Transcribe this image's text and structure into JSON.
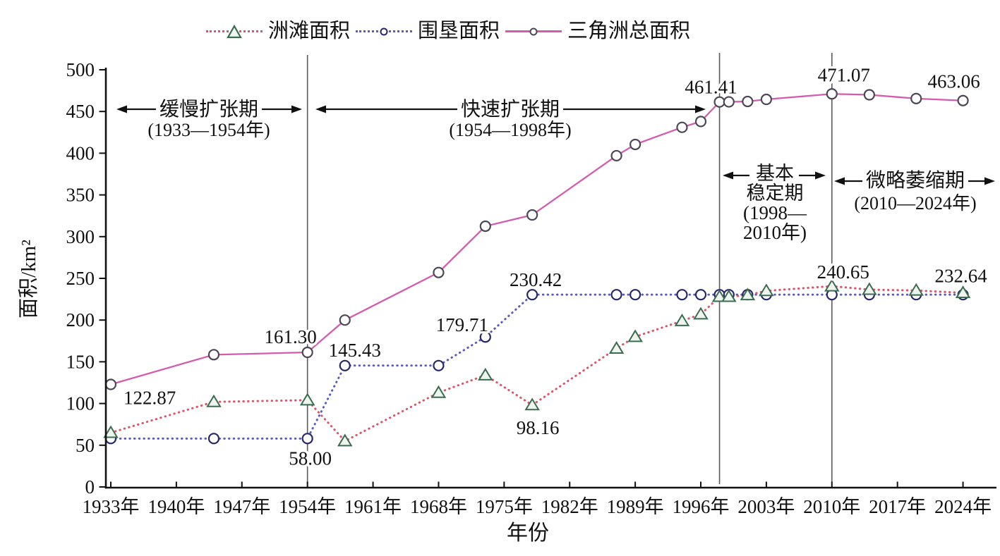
{
  "figure": {
    "y_axis_title": "面积/km²",
    "x_axis_title": "年份"
  },
  "chart_data": {
    "type": "line",
    "title": "",
    "xlabel": "年份",
    "ylabel": "面积/km²",
    "ylim": [
      0,
      500
    ],
    "grid": false,
    "legend_position": "top",
    "y_ticks": [
      "0",
      "50",
      "100",
      "150",
      "200",
      "250",
      "300",
      "350",
      "400",
      "450",
      "500"
    ],
    "x_tick_labels": [
      "1933年",
      "1940年",
      "1947年",
      "1954年",
      "1961年",
      "1968年",
      "1975年",
      "1982年",
      "1989年",
      "1996年",
      "2003年",
      "2010年",
      "2017年",
      "2024年"
    ],
    "x": [
      1933,
      1944,
      1954,
      1958,
      1968,
      1973,
      1978,
      1987,
      1989,
      1994,
      1996,
      1998,
      1999,
      2001,
      2003,
      2010,
      2014,
      2019,
      2024
    ],
    "series": [
      {
        "id": "shoal-area",
        "name": "洲滩面积",
        "color": "#dd5468",
        "line_style": "dotted",
        "marker": "triangle",
        "marker_color": "#3b6b50",
        "values": [
          65,
          102,
          104,
          55,
          113,
          134,
          98.16,
          166,
          180,
          199,
          207,
          228,
          228,
          230,
          235,
          240.65,
          236.5,
          235.5,
          232.64
        ]
      },
      {
        "id": "reclamation-area",
        "name": "围垦面积",
        "color": "#5a5ac2",
        "line_style": "dotted",
        "marker": "circle",
        "marker_color": "#26266a",
        "values": [
          58,
          58,
          58,
          145.43,
          145.43,
          179.71,
          230.42,
          230.42,
          230.42,
          230.42,
          230.42,
          230.42,
          230.42,
          230.42,
          230.42,
          230.42,
          230.42,
          230.42,
          230.42
        ]
      },
      {
        "id": "delta-total-area",
        "name": "三角洲总面积",
        "color": "#d45cae",
        "line_style": "solid",
        "marker": "circle",
        "marker_color": "#4d4657",
        "values": [
          122.87,
          158.5,
          161.3,
          200,
          257,
          312.5,
          326,
          397,
          410.5,
          431,
          438,
          461.41,
          461.5,
          462,
          464.5,
          471.07,
          470,
          465.5,
          463.06
        ]
      }
    ],
    "point_labels": [
      {
        "series": 2,
        "x": 1933,
        "text": "122.87"
      },
      {
        "series": 2,
        "x": 1954,
        "text": "161.30"
      },
      {
        "series": 1,
        "x": 1954,
        "text": "58.00"
      },
      {
        "series": 1,
        "x": 1958,
        "text": "145.43"
      },
      {
        "series": 1,
        "x": 1973,
        "text": "179.71"
      },
      {
        "series": 1,
        "x": 1978,
        "text": "230.42"
      },
      {
        "series": 0,
        "x": 1978,
        "text": "98.16"
      },
      {
        "series": 2,
        "x": 1998,
        "text": "461.41"
      },
      {
        "series": 2,
        "x": 2010,
        "text": "471.07"
      },
      {
        "series": 2,
        "x": 2024,
        "text": "463.06"
      },
      {
        "series": 0,
        "x": 2010,
        "text": "240.65"
      },
      {
        "series": 0,
        "x": 2024,
        "text": "232.64"
      }
    ],
    "annotations": [
      {
        "id": "slow-expansion",
        "label": "缓慢扩张期",
        "range": "(1933—1954年)"
      },
      {
        "id": "rapid-expansion",
        "label": "快速扩张期",
        "range": "(1954—1998年)"
      },
      {
        "id": "basically-stable",
        "lines": [
          "基本",
          "稳定期",
          "(1998—",
          "2010年)"
        ]
      },
      {
        "id": "slight-shrinkage",
        "label": "微略萎缩期",
        "range": "(2010—2024年)"
      }
    ],
    "dividers": [
      "1954",
      "1998",
      "2010"
    ]
  }
}
